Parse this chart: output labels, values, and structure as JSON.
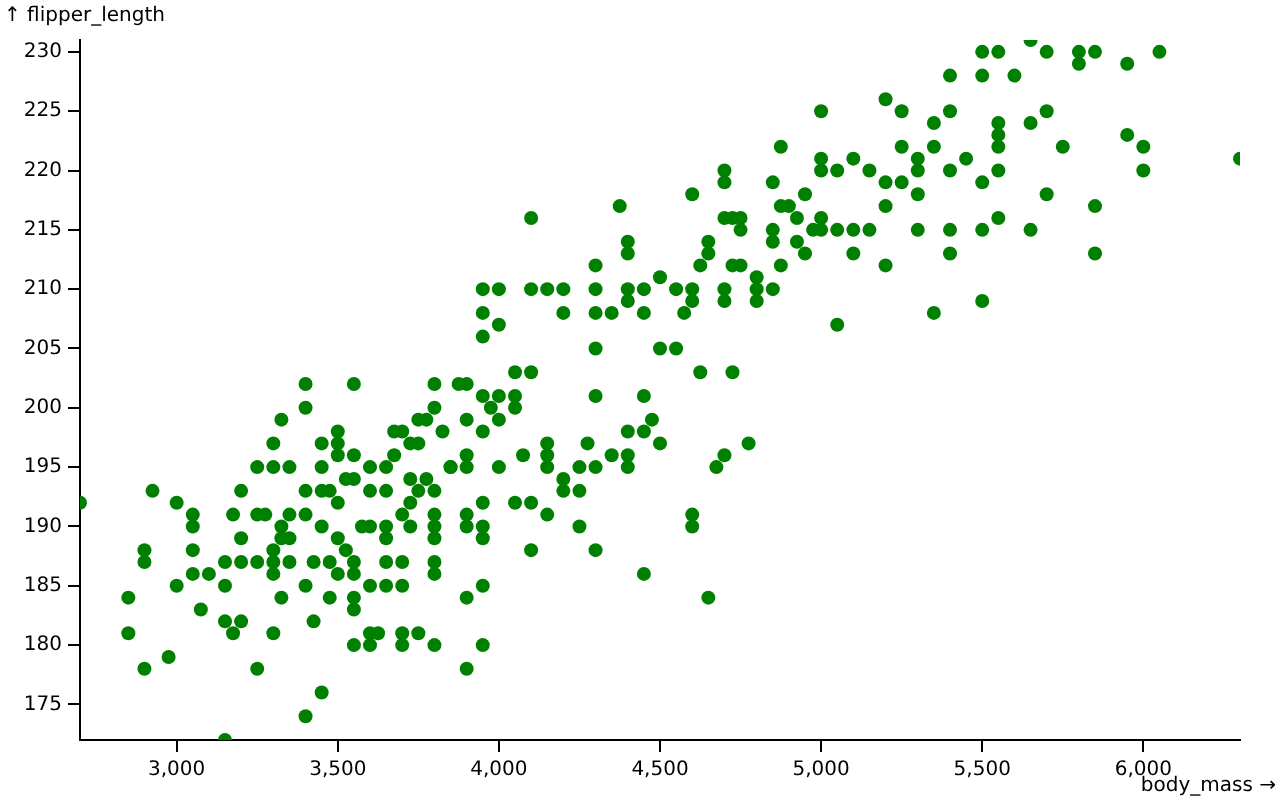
{
  "chart_data": {
    "type": "scatter",
    "xlabel": "body_mass →",
    "ylabel": "↑ flipper_length",
    "color": "#008000",
    "marker": "circle",
    "xlim": [
      2700,
      6300
    ],
    "ylim": [
      172,
      231
    ],
    "xticks": [
      {
        "value": 3000,
        "label": "3,000"
      },
      {
        "value": 3500,
        "label": "3,500"
      },
      {
        "value": 4000,
        "label": "4,000"
      },
      {
        "value": 4500,
        "label": "4,500"
      },
      {
        "value": 5000,
        "label": "5,000"
      },
      {
        "value": 5500,
        "label": "5,500"
      },
      {
        "value": 6000,
        "label": "6,000"
      }
    ],
    "yticks": [
      175,
      180,
      185,
      190,
      195,
      200,
      205,
      210,
      215,
      220,
      225,
      230
    ],
    "x": [
      3400,
      3550,
      3800,
      3875,
      3400,
      3800,
      3325,
      3775,
      3750,
      3500,
      3675,
      3700,
      3825,
      3300,
      3450,
      3500,
      3725,
      3750,
      3500,
      3550,
      3675,
      3250,
      3300,
      3350,
      3450,
      3600,
      3650,
      3850,
      3525,
      3550,
      3725,
      3775,
      2925,
      3200,
      3400,
      3450,
      3475,
      3600,
      3650,
      3750,
      3800,
      3000,
      2700,
      3500,
      3725,
      3050,
      3175,
      3250,
      3275,
      3350,
      3400,
      3700,
      3800,
      3050,
      3325,
      3450,
      3575,
      3600,
      3650,
      3725,
      3800,
      3200,
      3325,
      3350,
      3500,
      3650,
      3800,
      2900,
      3050,
      3300,
      3525,
      2900,
      3150,
      3200,
      3250,
      3300,
      3350,
      3425,
      3475,
      3550,
      3650,
      3700,
      3800,
      3050,
      3100,
      3300,
      3500,
      3550,
      3800,
      3000,
      3150,
      3400,
      3600,
      3650,
      3700,
      2850,
      3325,
      3475,
      3550,
      3075,
      3550,
      3150,
      3200,
      3425,
      2850,
      3175,
      3300,
      3600,
      3625,
      3700,
      3750,
      3550,
      3600,
      3700,
      3800,
      2900,
      3250,
      2975,
      3450,
      3400,
      3150,
      4000,
      3950,
      4300,
      4500,
      4550,
      4050,
      4100,
      4625,
      4725,
      3900,
      3950,
      4000,
      4050,
      4300,
      4450,
      3975,
      4050,
      3900,
      4000,
      4475,
      3950,
      4400,
      4450,
      4150,
      4275,
      4500,
      4775,
      3900,
      4075,
      4150,
      4350,
      4400,
      4700,
      3850,
      3900,
      4000,
      4150,
      4250,
      4300,
      4400,
      4675,
      4200,
      4200,
      4250,
      3950,
      4050,
      4100,
      3900,
      4150,
      4600,
      3900,
      3950,
      4250,
      4600,
      3950,
      4100,
      4300,
      4450,
      3950,
      3900,
      4650,
      3950,
      3900,
      4700,
      4700,
      4600,
      4375,
      4100,
      4700,
      4725,
      4750,
      4750,
      4400,
      4650,
      4400,
      4650,
      4300,
      4625,
      4725,
      4750,
      4800,
      4500,
      3950,
      4000,
      4100,
      4150,
      4200,
      4300,
      4400,
      4450,
      4550,
      4600,
      4700,
      4800,
      4400,
      4600,
      4700,
      4800,
      3950,
      4200,
      4300,
      4350,
      4450,
      4575,
      5650,
      5500,
      5550,
      5700,
      5800,
      5850,
      6050,
      5800,
      5950,
      5400,
      5500,
      5600,
      5000,
      5200,
      5250,
      5400,
      5700,
      5350,
      5550,
      5650,
      5550,
      5950,
      4875,
      5250,
      5350,
      5550,
      5750,
      6000,
      5000,
      5100,
      5300,
      5450,
      6300,
      5000,
      5050,
      5150,
      5300,
      5400,
      5550,
      6000,
      4850,
      5200,
      5250,
      5500,
      4875,
      4900,
      5200,
      5850,
      4950,
      5300,
      5700,
      4925,
      5000,
      5550,
      4850,
      4975,
      5000,
      5050,
      5100,
      5150,
      5300,
      5400,
      5500,
      5650,
      4850,
      4925,
      4950,
      5100,
      5400,
      5850,
      4875,
      5200,
      4850,
      5050,
      5350,
      5500
    ],
    "values": [
      202,
      202,
      202,
      202,
      200,
      200,
      199,
      199,
      199,
      198,
      198,
      198,
      198,
      197,
      197,
      197,
      197,
      197,
      196,
      196,
      196,
      195,
      195,
      195,
      195,
      195,
      195,
      195,
      194,
      194,
      194,
      194,
      193,
      193,
      193,
      193,
      193,
      193,
      193,
      193,
      193,
      192,
      192,
      192,
      192,
      191,
      191,
      191,
      191,
      191,
      191,
      191,
      191,
      190,
      190,
      190,
      190,
      190,
      190,
      190,
      190,
      189,
      189,
      189,
      189,
      189,
      189,
      188,
      188,
      188,
      188,
      187,
      187,
      187,
      187,
      187,
      187,
      187,
      187,
      187,
      187,
      187,
      187,
      186,
      186,
      186,
      186,
      186,
      186,
      185,
      185,
      185,
      185,
      185,
      185,
      184,
      184,
      184,
      184,
      183,
      183,
      182,
      182,
      182,
      181,
      181,
      181,
      181,
      181,
      181,
      181,
      180,
      180,
      180,
      180,
      178,
      178,
      179,
      176,
      174,
      172,
      207,
      206,
      205,
      205,
      205,
      203,
      203,
      203,
      203,
      202,
      201,
      201,
      201,
      201,
      201,
      200,
      200,
      199,
      199,
      199,
      198,
      198,
      198,
      197,
      197,
      197,
      197,
      196,
      196,
      196,
      196,
      196,
      196,
      195,
      195,
      195,
      195,
      195,
      195,
      195,
      195,
      194,
      193,
      193,
      192,
      192,
      192,
      191,
      191,
      191,
      190,
      190,
      190,
      190,
      189,
      188,
      188,
      186,
      185,
      184,
      184,
      180,
      178,
      220,
      219,
      218,
      217,
      216,
      216,
      216,
      216,
      215,
      214,
      214,
      213,
      213,
      212,
      212,
      212,
      212,
      211,
      211,
      210,
      210,
      210,
      210,
      210,
      210,
      210,
      210,
      210,
      210,
      210,
      210,
      209,
      209,
      209,
      209,
      208,
      208,
      208,
      208,
      208,
      208,
      231,
      230,
      230,
      230,
      230,
      230,
      230,
      229,
      229,
      228,
      228,
      228,
      225,
      226,
      225,
      225,
      225,
      224,
      224,
      224,
      223,
      223,
      222,
      222,
      222,
      222,
      222,
      222,
      221,
      221,
      221,
      221,
      221,
      220,
      220,
      220,
      220,
      220,
      220,
      220,
      219,
      219,
      219,
      219,
      217,
      217,
      217,
      217,
      218,
      218,
      218,
      216,
      216,
      216,
      215,
      215,
      215,
      215,
      215,
      215,
      215,
      215,
      215,
      215,
      214,
      214,
      213,
      213,
      213,
      213,
      212,
      212,
      210,
      207,
      208,
      209
    ]
  }
}
